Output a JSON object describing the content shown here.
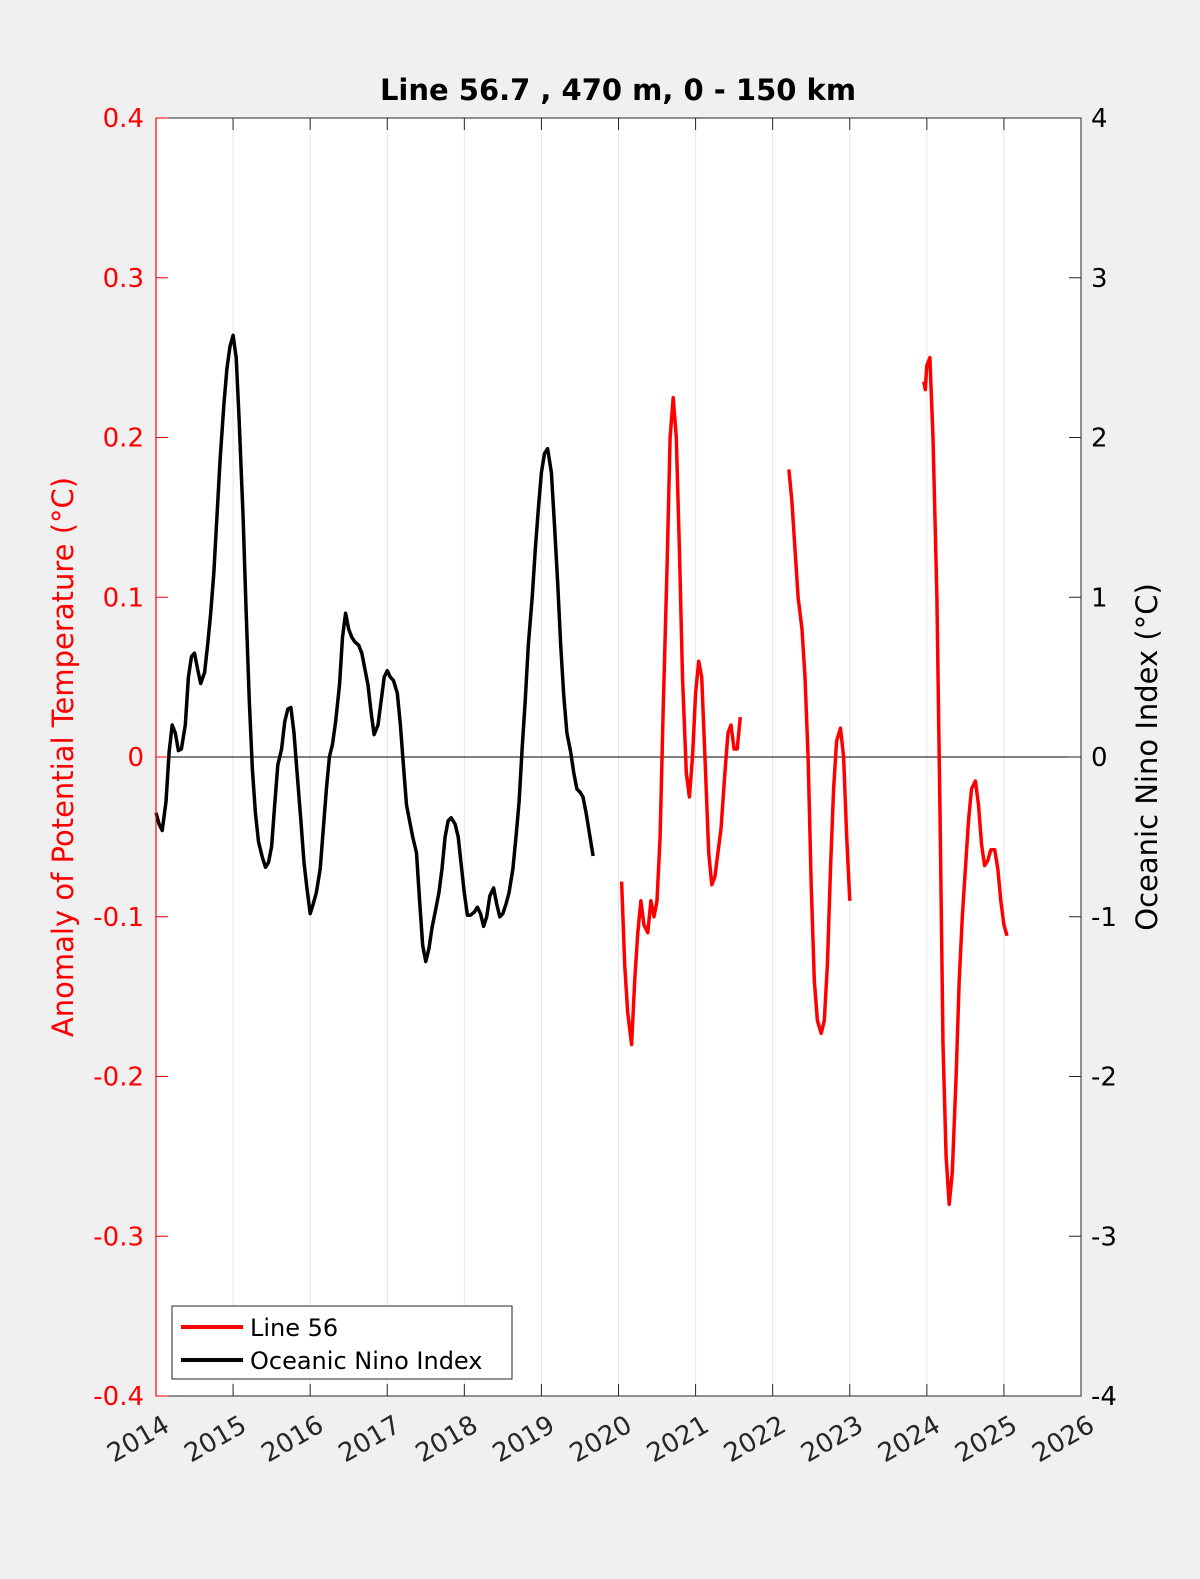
{
  "chart_data": {
    "type": "line",
    "title": "Line 56.7 , 470 m, 0 - 150 km",
    "xlabel": "",
    "ylabel_left": "Anomaly of Potential Temperature (°C)",
    "ylabel_right": "Oceanic Nino Index (°C)",
    "xlim": [
      2014,
      2026
    ],
    "ylim_left": [
      -0.4,
      0.4
    ],
    "ylim_right": [
      -4,
      4
    ],
    "x_ticks": [
      "2014",
      "2015",
      "2016",
      "2017",
      "2018",
      "2019",
      "2020",
      "2021",
      "2022",
      "2023",
      "2024",
      "2025",
      "2026"
    ],
    "y_ticks_left": [
      "-0.4",
      "-0.3",
      "-0.2",
      "-0.1",
      "0",
      "0.1",
      "0.2",
      "0.3",
      "0.4"
    ],
    "y_ticks_right": [
      "-4",
      "-3",
      "-2",
      "-1",
      "0",
      "1",
      "2",
      "3",
      "4"
    ],
    "grid": "vertical",
    "legend": "bottom-left",
    "colors": {
      "line56": "#ff0000",
      "oni": "#000000",
      "left_axis": "#ff0000",
      "right_axis": "#000000"
    },
    "series": [
      {
        "name": "Line 56",
        "axis": "left",
        "segments": [
          [
            [
              2020.04,
              -0.078
            ],
            [
              2020.08,
              -0.13
            ],
            [
              2020.12,
              -0.16
            ],
            [
              2020.17,
              -0.18
            ],
            [
              2020.21,
              -0.14
            ],
            [
              2020.25,
              -0.11
            ],
            [
              2020.29,
              -0.09
            ],
            [
              2020.33,
              -0.105
            ],
            [
              2020.38,
              -0.11
            ],
            [
              2020.42,
              -0.09
            ],
            [
              2020.46,
              -0.1
            ],
            [
              2020.5,
              -0.09
            ],
            [
              2020.54,
              -0.05
            ],
            [
              2020.58,
              0.03
            ],
            [
              2020.63,
              0.12
            ],
            [
              2020.67,
              0.2
            ],
            [
              2020.71,
              0.225
            ],
            [
              2020.75,
              0.2
            ],
            [
              2020.79,
              0.13
            ],
            [
              2020.83,
              0.05
            ],
            [
              2020.88,
              -0.01
            ],
            [
              2020.92,
              -0.025
            ],
            [
              2020.96,
              0.0
            ],
            [
              2021.0,
              0.04
            ],
            [
              2021.04,
              0.06
            ],
            [
              2021.08,
              0.05
            ],
            [
              2021.13,
              -0.01
            ],
            [
              2021.17,
              -0.06
            ],
            [
              2021.21,
              -0.08
            ],
            [
              2021.25,
              -0.075
            ],
            [
              2021.29,
              -0.06
            ],
            [
              2021.33,
              -0.045
            ],
            [
              2021.38,
              -0.01
            ],
            [
              2021.42,
              0.015
            ],
            [
              2021.46,
              0.02
            ],
            [
              2021.5,
              0.005
            ],
            [
              2021.54,
              0.005
            ],
            [
              2021.58,
              0.025
            ]
          ],
          [
            [
              2022.21,
              0.18
            ],
            [
              2022.25,
              0.16
            ],
            [
              2022.29,
              0.13
            ],
            [
              2022.33,
              0.1
            ],
            [
              2022.38,
              0.08
            ],
            [
              2022.42,
              0.05
            ],
            [
              2022.46,
              0.0
            ],
            [
              2022.5,
              -0.08
            ],
            [
              2022.54,
              -0.14
            ],
            [
              2022.58,
              -0.165
            ],
            [
              2022.63,
              -0.173
            ],
            [
              2022.67,
              -0.165
            ],
            [
              2022.71,
              -0.13
            ],
            [
              2022.75,
              -0.07
            ],
            [
              2022.79,
              -0.02
            ],
            [
              2022.83,
              0.01
            ],
            [
              2022.88,
              0.018
            ],
            [
              2022.92,
              0.0
            ],
            [
              2022.96,
              -0.05
            ],
            [
              2023.0,
              -0.09
            ]
          ],
          [
            [
              2023.96,
              0.235
            ],
            [
              2023.98,
              0.23
            ],
            [
              2024.0,
              0.245
            ],
            [
              2024.04,
              0.25
            ],
            [
              2024.08,
              0.2
            ],
            [
              2024.13,
              0.1
            ],
            [
              2024.17,
              -0.03
            ],
            [
              2024.21,
              -0.18
            ],
            [
              2024.25,
              -0.25
            ],
            [
              2024.29,
              -0.28
            ],
            [
              2024.33,
              -0.26
            ],
            [
              2024.38,
              -0.2
            ],
            [
              2024.42,
              -0.14
            ],
            [
              2024.46,
              -0.1
            ],
            [
              2024.5,
              -0.07
            ],
            [
              2024.54,
              -0.04
            ],
            [
              2024.58,
              -0.02
            ],
            [
              2024.63,
              -0.015
            ],
            [
              2024.67,
              -0.03
            ],
            [
              2024.71,
              -0.055
            ],
            [
              2024.75,
              -0.068
            ],
            [
              2024.79,
              -0.065
            ],
            [
              2024.83,
              -0.058
            ],
            [
              2024.88,
              -0.058
            ],
            [
              2024.92,
              -0.07
            ],
            [
              2024.96,
              -0.09
            ],
            [
              2025.0,
              -0.105
            ],
            [
              2025.04,
              -0.112
            ]
          ]
        ]
      },
      {
        "name": "Oceanic Nino Index",
        "axis": "right",
        "points": [
          [
            2014.0,
            -0.35
          ],
          [
            2014.04,
            -0.42
          ],
          [
            2014.08,
            -0.46
          ],
          [
            2014.13,
            -0.28
          ],
          [
            2014.17,
            0.03
          ],
          [
            2014.21,
            0.2
          ],
          [
            2014.25,
            0.15
          ],
          [
            2014.29,
            0.04
          ],
          [
            2014.33,
            0.05
          ],
          [
            2014.38,
            0.2
          ],
          [
            2014.42,
            0.5
          ],
          [
            2014.46,
            0.63
          ],
          [
            2014.5,
            0.65
          ],
          [
            2014.54,
            0.55
          ],
          [
            2014.58,
            0.46
          ],
          [
            2014.63,
            0.53
          ],
          [
            2014.67,
            0.7
          ],
          [
            2014.71,
            0.9
          ],
          [
            2014.75,
            1.15
          ],
          [
            2014.79,
            1.5
          ],
          [
            2014.83,
            1.85
          ],
          [
            2014.88,
            2.2
          ],
          [
            2014.92,
            2.43
          ],
          [
            2014.96,
            2.57
          ],
          [
            2015.0,
            2.64
          ],
          [
            2015.04,
            2.5
          ],
          [
            2015.08,
            2.1
          ],
          [
            2015.13,
            1.5
          ],
          [
            2015.17,
            0.9
          ],
          [
            2015.21,
            0.35
          ],
          [
            2015.25,
            -0.08
          ],
          [
            2015.29,
            -0.35
          ],
          [
            2015.33,
            -0.53
          ],
          [
            2015.38,
            -0.63
          ],
          [
            2015.42,
            -0.69
          ],
          [
            2015.46,
            -0.66
          ],
          [
            2015.5,
            -0.56
          ],
          [
            2015.54,
            -0.3
          ],
          [
            2015.58,
            -0.05
          ],
          [
            2015.63,
            0.05
          ],
          [
            2015.67,
            0.22
          ],
          [
            2015.71,
            0.3
          ],
          [
            2015.75,
            0.31
          ],
          [
            2015.79,
            0.15
          ],
          [
            2015.83,
            -0.1
          ],
          [
            2015.88,
            -0.4
          ],
          [
            2015.92,
            -0.66
          ],
          [
            2015.96,
            -0.83
          ],
          [
            2016.0,
            -0.98
          ],
          [
            2016.04,
            -0.92
          ],
          [
            2016.08,
            -0.85
          ],
          [
            2016.13,
            -0.7
          ],
          [
            2016.17,
            -0.45
          ],
          [
            2016.21,
            -0.2
          ],
          [
            2016.25,
            0.0
          ],
          [
            2016.29,
            0.08
          ],
          [
            2016.33,
            0.22
          ],
          [
            2016.38,
            0.45
          ],
          [
            2016.42,
            0.75
          ],
          [
            2016.46,
            0.9
          ],
          [
            2016.5,
            0.8
          ],
          [
            2016.54,
            0.75
          ],
          [
            2016.58,
            0.72
          ],
          [
            2016.63,
            0.7
          ],
          [
            2016.67,
            0.65
          ],
          [
            2016.71,
            0.55
          ],
          [
            2016.75,
            0.45
          ],
          [
            2016.79,
            0.28
          ],
          [
            2016.83,
            0.14
          ],
          [
            2016.88,
            0.2
          ],
          [
            2016.92,
            0.35
          ],
          [
            2016.96,
            0.5
          ],
          [
            2017.0,
            0.54
          ],
          [
            2017.04,
            0.5
          ],
          [
            2017.08,
            0.48
          ],
          [
            2017.13,
            0.4
          ],
          [
            2017.17,
            0.2
          ],
          [
            2017.21,
            -0.05
          ],
          [
            2017.25,
            -0.3
          ],
          [
            2017.29,
            -0.4
          ],
          [
            2017.33,
            -0.5
          ],
          [
            2017.38,
            -0.6
          ],
          [
            2017.42,
            -0.9
          ],
          [
            2017.46,
            -1.18
          ],
          [
            2017.5,
            -1.28
          ],
          [
            2017.54,
            -1.2
          ],
          [
            2017.58,
            -1.07
          ],
          [
            2017.63,
            -0.95
          ],
          [
            2017.67,
            -0.85
          ],
          [
            2017.71,
            -0.7
          ],
          [
            2017.75,
            -0.5
          ],
          [
            2017.79,
            -0.4
          ],
          [
            2017.83,
            -0.38
          ],
          [
            2017.88,
            -0.42
          ],
          [
            2017.92,
            -0.5
          ],
          [
            2017.96,
            -0.68
          ],
          [
            2018.0,
            -0.85
          ],
          [
            2018.04,
            -0.99
          ],
          [
            2018.08,
            -0.99
          ],
          [
            2018.13,
            -0.97
          ],
          [
            2018.17,
            -0.94
          ],
          [
            2018.21,
            -0.98
          ],
          [
            2018.25,
            -1.06
          ],
          [
            2018.29,
            -1.0
          ],
          [
            2018.33,
            -0.87
          ],
          [
            2018.38,
            -0.82
          ],
          [
            2018.42,
            -0.92
          ],
          [
            2018.46,
            -1.0
          ],
          [
            2018.5,
            -0.98
          ],
          [
            2018.54,
            -0.92
          ],
          [
            2018.58,
            -0.85
          ],
          [
            2018.63,
            -0.7
          ],
          [
            2018.67,
            -0.5
          ],
          [
            2018.71,
            -0.28
          ],
          [
            2018.75,
            0.05
          ],
          [
            2018.79,
            0.35
          ],
          [
            2018.83,
            0.7
          ],
          [
            2018.88,
            1.0
          ],
          [
            2018.92,
            1.3
          ],
          [
            2018.96,
            1.55
          ],
          [
            2019.0,
            1.78
          ],
          [
            2019.04,
            1.9
          ],
          [
            2019.08,
            1.93
          ],
          [
            2019.13,
            1.78
          ],
          [
            2019.17,
            1.45
          ],
          [
            2019.21,
            1.1
          ],
          [
            2019.25,
            0.7
          ],
          [
            2019.29,
            0.38
          ],
          [
            2019.33,
            0.15
          ],
          [
            2019.38,
            0.03
          ],
          [
            2019.42,
            -0.1
          ],
          [
            2019.46,
            -0.2
          ],
          [
            2019.5,
            -0.22
          ],
          [
            2019.54,
            -0.25
          ],
          [
            2019.58,
            -0.35
          ],
          [
            2019.63,
            -0.5
          ],
          [
            2019.67,
            -0.62
          ]
        ],
        "note": ""
      }
    ]
  },
  "legend": {
    "items": [
      "Line 56",
      "Oceanic Nino Index"
    ]
  }
}
